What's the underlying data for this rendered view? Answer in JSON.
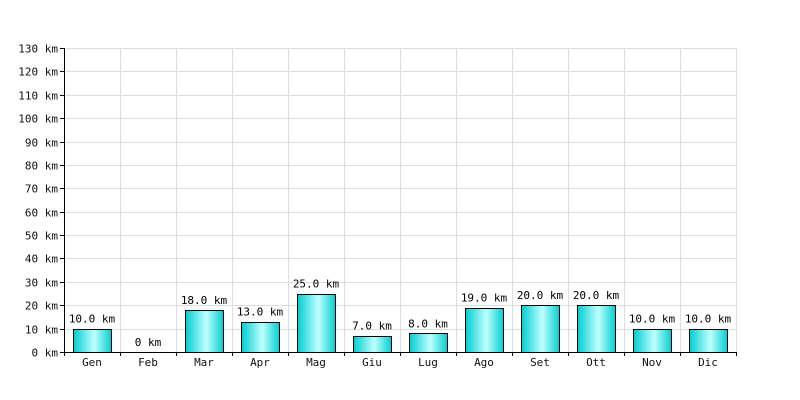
{
  "chart_data": {
    "type": "bar",
    "title": "",
    "xlabel": "",
    "ylabel": "",
    "unit": "km",
    "categories": [
      "Gen",
      "Feb",
      "Mar",
      "Apr",
      "Mag",
      "Giu",
      "Lug",
      "Ago",
      "Set",
      "Ott",
      "Nov",
      "Dic"
    ],
    "values": [
      10,
      0,
      18,
      13,
      25,
      7,
      8,
      19,
      20,
      20,
      10,
      10
    ],
    "value_labels": [
      "10.0 km",
      "0 km",
      "18.0 km",
      "13.0 km",
      "25.0 km",
      "7.0 km",
      "8.0 km",
      "19.0 km",
      "20.0 km",
      "20.0 km",
      "10.0 km",
      "10.0 km"
    ],
    "ylim": [
      0,
      130
    ],
    "y_ticks": [
      0,
      10,
      20,
      30,
      40,
      50,
      60,
      70,
      80,
      90,
      100,
      110,
      120,
      130
    ],
    "y_tick_labels": [
      "0 km",
      "10 km",
      "20 km",
      "30 km",
      "40 km",
      "50 km",
      "60 km",
      "70 km",
      "80 km",
      "90 km",
      "100 km",
      "110 km",
      "120 km",
      "130 km"
    ],
    "grid": true,
    "bar_color": "#00CED1",
    "bar_highlight": "#BFFFFF",
    "bar_outline": "#000000",
    "grid_color": "#DDDDDD"
  }
}
